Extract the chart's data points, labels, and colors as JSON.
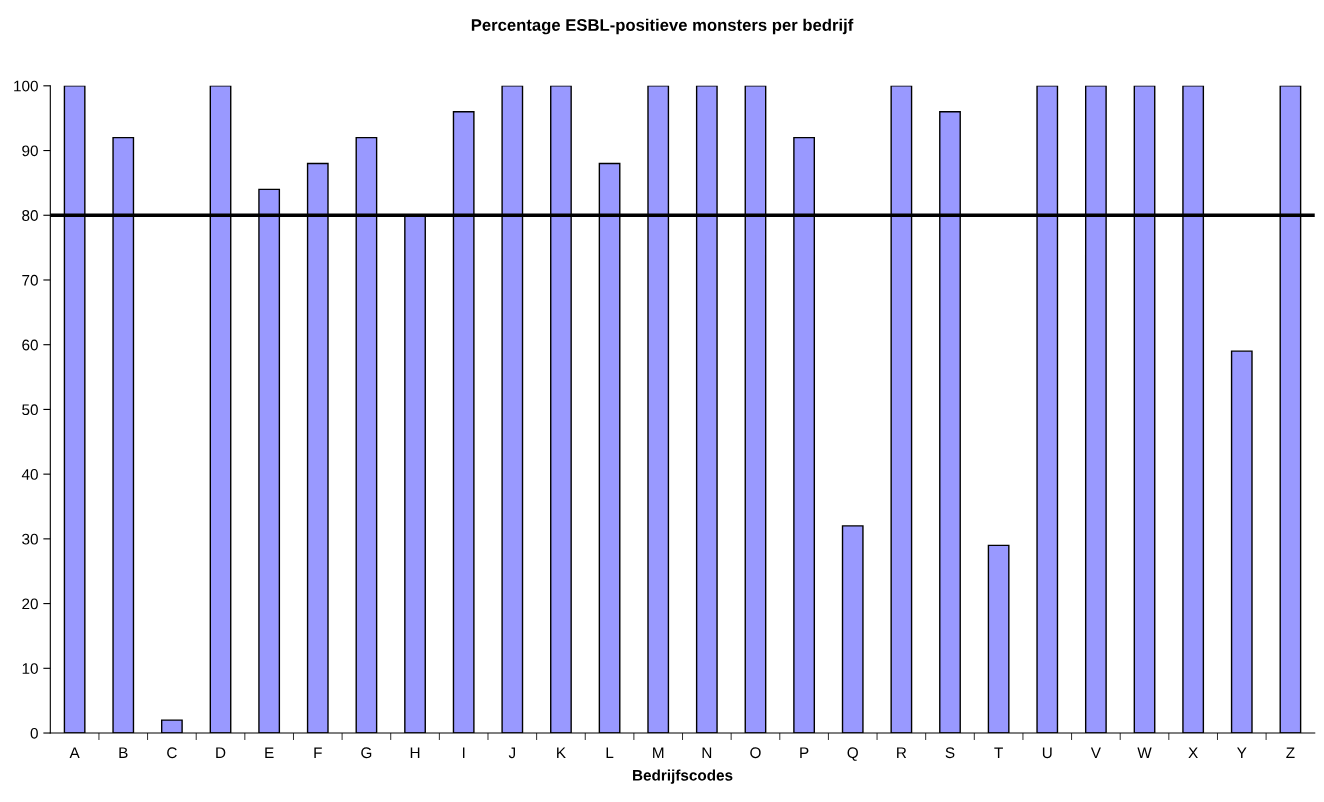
{
  "chart_data": {
    "type": "bar",
    "title": "Percentage ESBL-positieve monsters per bedrijf",
    "xlabel": "Bedrijfscodes",
    "categories": [
      "A",
      "B",
      "C",
      "D",
      "E",
      "F",
      "G",
      "H",
      "I",
      "J",
      "K",
      "L",
      "M",
      "N",
      "O",
      "P",
      "Q",
      "R",
      "S",
      "T",
      "U",
      "V",
      "W",
      "X",
      "Y",
      "Z"
    ],
    "values": [
      100,
      92,
      2,
      100,
      84,
      88,
      92,
      80,
      96,
      100,
      100,
      88,
      100,
      100,
      100,
      92,
      32,
      100,
      96,
      29,
      100,
      100,
      100,
      100,
      59,
      100
    ],
    "color": "#9999ff",
    "ylim": [
      0,
      100
    ],
    "yticks": [
      0,
      10,
      20,
      30,
      40,
      50,
      60,
      70,
      80,
      90,
      100
    ],
    "ref_lines": [
      {
        "axis": "y",
        "value": 80,
        "color": "#000000",
        "line_style": "solid"
      }
    ],
    "grid": false,
    "legend": false
  }
}
